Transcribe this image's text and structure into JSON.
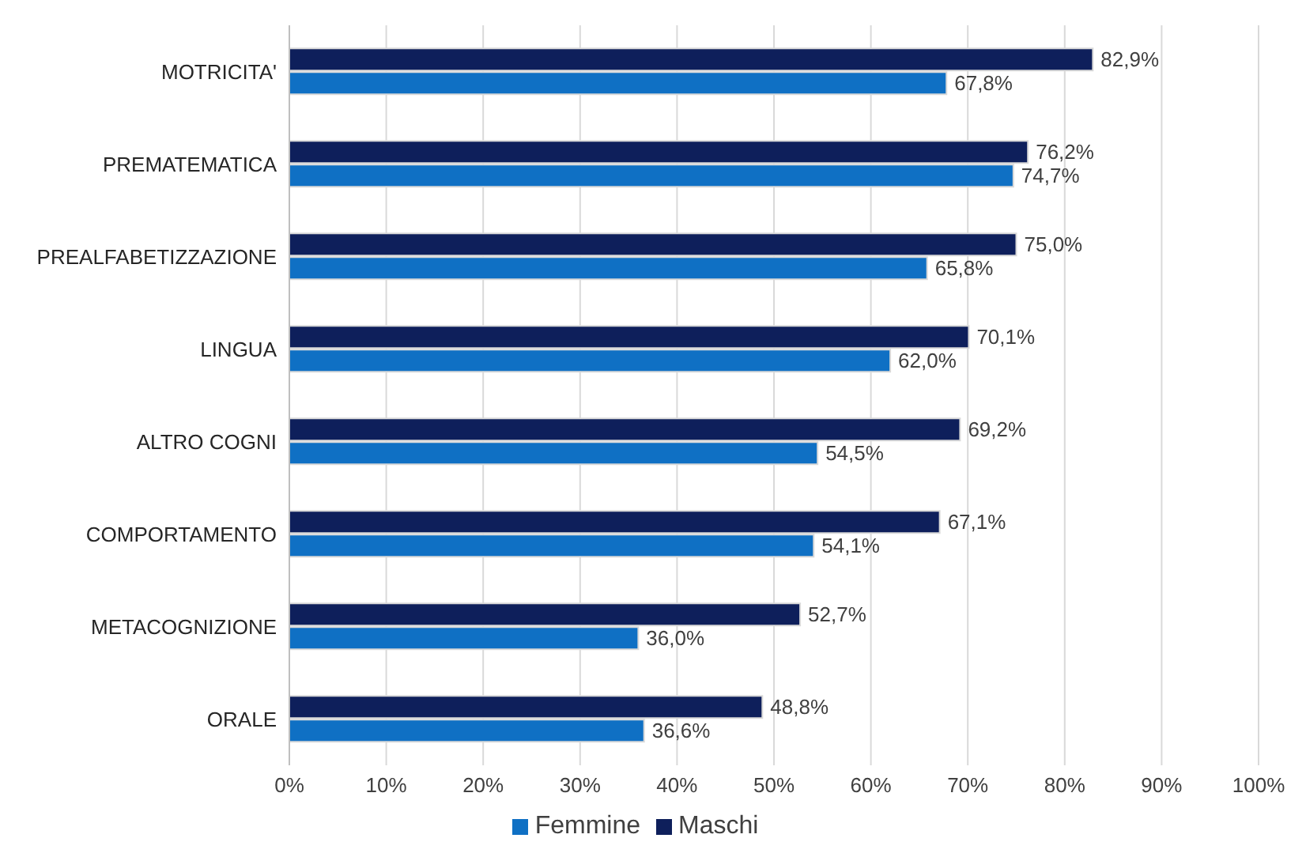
{
  "chart_data": {
    "type": "bar",
    "orientation": "horizontal",
    "categories": [
      "MOTRICITA'",
      "PREMATEMATICA",
      "PREALFABETIZZAZIONE",
      "LINGUA",
      "ALTRO COGNI",
      "COMPORTAMENTO",
      "METACOGNIZIONE",
      "ORALE"
    ],
    "series": [
      {
        "name": "Maschi",
        "color": "#0e1f5b",
        "values": [
          82.9,
          76.2,
          75.0,
          70.1,
          69.2,
          67.1,
          52.7,
          48.8
        ],
        "value_labels": [
          "82,9%",
          "76,2%",
          "75,0%",
          "70,1%",
          "69,2%",
          "67,1%",
          "52,7%",
          "48,8%"
        ]
      },
      {
        "name": "Femmine",
        "color": "#0f70c4",
        "values": [
          67.8,
          74.7,
          65.8,
          62.0,
          54.5,
          54.1,
          36.0,
          36.6
        ],
        "value_labels": [
          "67,8%",
          "74,7%",
          "65,8%",
          "62,0%",
          "54,5%",
          "54,1%",
          "36,0%",
          "36,6%"
        ]
      }
    ],
    "xlim": [
      0,
      100
    ],
    "xticks": [
      {
        "value": 0,
        "label": "0%"
      },
      {
        "value": 10,
        "label": "10%"
      },
      {
        "value": 20,
        "label": "20%"
      },
      {
        "value": 30,
        "label": "30%"
      },
      {
        "value": 40,
        "label": "40%"
      },
      {
        "value": 50,
        "label": "50%"
      },
      {
        "value": 60,
        "label": "60%"
      },
      {
        "value": 70,
        "label": "70%"
      },
      {
        "value": 80,
        "label": "80%"
      },
      {
        "value": 90,
        "label": "90%"
      },
      {
        "value": 100,
        "label": "100%"
      }
    ],
    "grid": "x",
    "legend": "bottom"
  }
}
